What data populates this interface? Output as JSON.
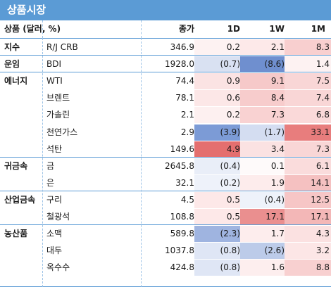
{
  "title": "상품시장",
  "headers": {
    "item": "상품 (달러, %)",
    "close": "종가",
    "d1": "1D",
    "w1": "1W",
    "m1": "1M"
  },
  "colors": {
    "title_bg": "#5b9bd5"
  },
  "rows": [
    {
      "group": "지수",
      "name": "R/J CRB",
      "close": "346.9",
      "d1": "0.2",
      "w1": "2.1",
      "m1": "8.3",
      "bg": [
        "#fdf2f2",
        "#fde9e9",
        "#f8cfcf"
      ]
    },
    {
      "group": "운임",
      "name": "BDI",
      "close": "1928.0",
      "d1": "(0.7)",
      "w1": "(8.6)",
      "m1": "1.4",
      "bg": [
        "#d9e1f2",
        "#6f8fcf",
        "#fdf2f2"
      ]
    },
    {
      "group": "에너지",
      "name": "WTI",
      "close": "74.4",
      "d1": "0.9",
      "w1": "9.1",
      "m1": "7.5",
      "bg": [
        "#fbe3e3",
        "#f6c9c9",
        "#f9d6d6"
      ]
    },
    {
      "group": "",
      "name": "브렌트",
      "close": "78.1",
      "d1": "0.6",
      "w1": "8.4",
      "m1": "7.4",
      "bg": [
        "#fce7e7",
        "#f7cccc",
        "#f9d6d6"
      ]
    },
    {
      "group": "",
      "name": "가솔린",
      "close": "2.1",
      "d1": "0.2",
      "w1": "7.3",
      "m1": "6.8",
      "bg": [
        "#fdf0f0",
        "#f9d2d2",
        "#fad9d9"
      ]
    },
    {
      "group": "",
      "name": "천연가스",
      "close": "2.9",
      "d1": "(3.9)",
      "w1": "(1.7)",
      "m1": "33.1",
      "bg": [
        "#7c9bd6",
        "#d4ddf1",
        "#e87d7d"
      ]
    },
    {
      "group": "",
      "name": "석탄",
      "close": "149.6",
      "d1": "4.9",
      "w1": "3.4",
      "m1": "7.3",
      "bg": [
        "#e46f6f",
        "#fbe2e2",
        "#f9d6d6"
      ]
    },
    {
      "group": "귀금속",
      "name": "금",
      "close": "2645.8",
      "d1": "(0.4)",
      "w1": "0.1",
      "m1": "6.1",
      "bg": [
        "#e9eef8",
        "#fefafa",
        "#fadcdc"
      ]
    },
    {
      "group": "",
      "name": "은",
      "close": "32.1",
      "d1": "(0.2)",
      "w1": "1.9",
      "m1": "14.1",
      "bg": [
        "#eef2fa",
        "#fdecec",
        "#f5c1c1"
      ]
    },
    {
      "group": "산업금속",
      "name": "구리",
      "close": "4.5",
      "d1": "0.5",
      "w1": "(0.4)",
      "m1": "12.5",
      "bg": [
        "#fde8e8",
        "#eef2fa",
        "#f6c6c6"
      ]
    },
    {
      "group": "",
      "name": "철광석",
      "close": "108.8",
      "d1": "0.5",
      "w1": "17.1",
      "m1": "17.1",
      "bg": [
        "#fde8e8",
        "#ea8f8f",
        "#f3b7b7"
      ]
    },
    {
      "group": "농산품",
      "name": "소맥",
      "close": "589.8",
      "d1": "(2.3)",
      "w1": "1.7",
      "m1": "4.3",
      "bg": [
        "#9fb4e0",
        "#fdeded",
        "#fbe1e1"
      ]
    },
    {
      "group": "",
      "name": "대두",
      "close": "1037.8",
      "d1": "(0.8)",
      "w1": "(2.6)",
      "m1": "3.2",
      "bg": [
        "#dfe6f5",
        "#bccbe9",
        "#fce6e6"
      ]
    },
    {
      "group": "",
      "name": "옥수수",
      "close": "424.8",
      "d1": "(0.8)",
      "w1": "1.6",
      "m1": "8.8",
      "bg": [
        "#dfe6f5",
        "#fdeeee",
        "#f8d0d0"
      ]
    }
  ]
}
